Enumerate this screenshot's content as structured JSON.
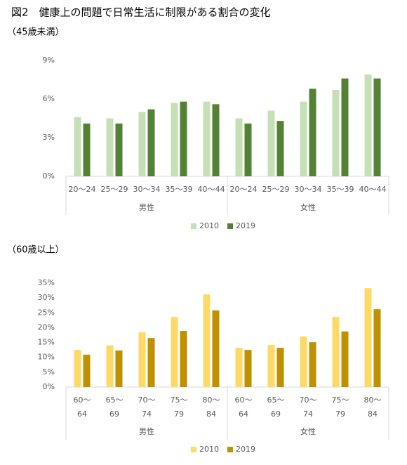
{
  "title": "図2　健康上の問題で日常生活に制限がある割合の変化",
  "chart_data": [
    {
      "type": "bar",
      "subtitle": "（45歳未満）",
      "categories": [
        [
          "20～24"
        ],
        [
          "25～29"
        ],
        [
          "30～34"
        ],
        [
          "35～39"
        ],
        [
          "40～44"
        ],
        [
          "20～24"
        ],
        [
          "25～29"
        ],
        [
          "30～34"
        ],
        [
          "35～39"
        ],
        [
          "40～44"
        ]
      ],
      "groups": [
        "男性",
        "女性"
      ],
      "series": [
        {
          "name": "2010",
          "color": "#c5e0b4",
          "values": [
            4.6,
            4.5,
            5.0,
            5.7,
            5.8,
            4.5,
            5.1,
            5.8,
            6.7,
            7.9
          ]
        },
        {
          "name": "2019",
          "color": "#548235",
          "values": [
            4.1,
            4.1,
            5.2,
            5.8,
            5.6,
            4.1,
            4.3,
            6.8,
            7.6,
            7.6
          ]
        }
      ],
      "ylim": [
        0,
        9
      ],
      "yticks": [
        {
          "value": 0,
          "label": "0%"
        },
        {
          "value": 3,
          "label": "3%"
        },
        {
          "value": 6,
          "label": "6%"
        },
        {
          "value": 9,
          "label": "9%"
        }
      ],
      "grid": false,
      "legend": "bottom"
    },
    {
      "type": "bar",
      "subtitle": "（60歳以上）",
      "categories": [
        [
          "60～",
          "64"
        ],
        [
          "65～",
          "69"
        ],
        [
          "70～",
          "74"
        ],
        [
          "75～",
          "79"
        ],
        [
          "80～",
          "84"
        ],
        [
          "60～",
          "64"
        ],
        [
          "65～",
          "69"
        ],
        [
          "70～",
          "74"
        ],
        [
          "75～",
          "79"
        ],
        [
          "80～",
          "84"
        ]
      ],
      "groups": [
        "男性",
        "女性"
      ],
      "series": [
        {
          "name": "2010",
          "color": "#ffd966",
          "values": [
            12.5,
            14.0,
            18.4,
            23.6,
            31.2,
            13.2,
            14.2,
            17.0,
            23.6,
            33.3
          ]
        },
        {
          "name": "2019",
          "color": "#bf9000",
          "values": [
            10.9,
            12.3,
            16.5,
            18.9,
            25.8,
            12.5,
            13.2,
            15.1,
            18.7,
            26.2
          ]
        }
      ],
      "ylim": [
        0,
        35
      ],
      "yticks": [
        {
          "value": 0,
          "label": "0%"
        },
        {
          "value": 5,
          "label": "5%"
        },
        {
          "value": 10,
          "label": "10%"
        },
        {
          "value": 15,
          "label": "15%"
        },
        {
          "value": 20,
          "label": "20%"
        },
        {
          "value": 25,
          "label": "25%"
        },
        {
          "value": 30,
          "label": "30%"
        },
        {
          "value": 35,
          "label": "35%"
        }
      ],
      "grid": false,
      "legend": "bottom"
    }
  ]
}
